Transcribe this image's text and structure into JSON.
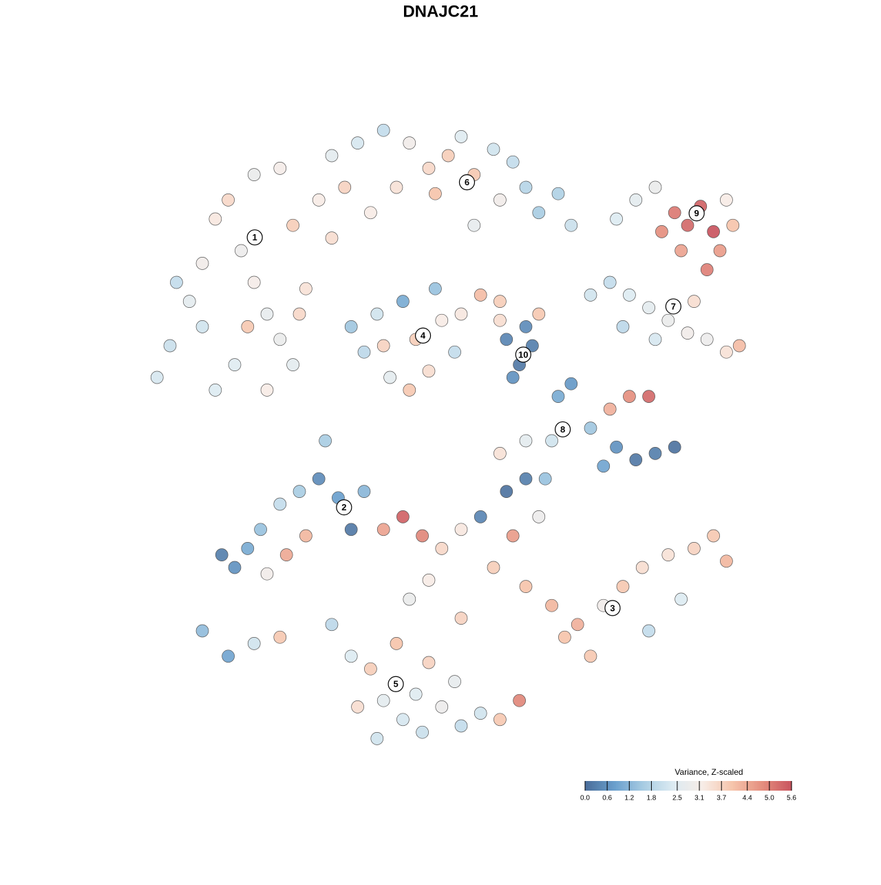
{
  "chart_data": {
    "type": "scatter",
    "title": "DNAJC21",
    "colorbar_label": "Variance, Z-scaled",
    "clim": [
      0,
      5.6
    ],
    "cticks": [
      {
        "value": 0,
        "label": "0.0"
      },
      0.6,
      1.2,
      1.8,
      2.5,
      3.1,
      3.7,
      4.4,
      {
        "value": 5,
        "label": "5.0"
      },
      5.6
    ],
    "colormap": [
      "#4a6d99",
      "#6a9fcd",
      "#a9cde3",
      "#ddebf2",
      "#f7ece6",
      "#f6c4ab",
      "#e58f7f",
      "#c9545e"
    ],
    "xlim": [
      0,
      100
    ],
    "ylim": [
      0,
      100
    ],
    "x": [
      3,
      5,
      8,
      10,
      12,
      14,
      16,
      18,
      20,
      22,
      15,
      12,
      20,
      24,
      26,
      24,
      28,
      30,
      10,
      6,
      18,
      22,
      25,
      17,
      30,
      34,
      38,
      42,
      45,
      48,
      50,
      52,
      55,
      58,
      60,
      62,
      65,
      56,
      46,
      40,
      36,
      32,
      52,
      67,
      74,
      77,
      80,
      83,
      85,
      87,
      89,
      90,
      84,
      92,
      88,
      91,
      81,
      70,
      73,
      76,
      79,
      82,
      85,
      88,
      91,
      93,
      80,
      75,
      86,
      33,
      35,
      37,
      39,
      41,
      43,
      45,
      47,
      49,
      46,
      38,
      42,
      50,
      53,
      56,
      57,
      59,
      61,
      60,
      58,
      62,
      56,
      65,
      67,
      73,
      76,
      79,
      70,
      74,
      77,
      80,
      83,
      72,
      64,
      60,
      56,
      13,
      15,
      17,
      19,
      22,
      25,
      28,
      31,
      33,
      26,
      23,
      20,
      10,
      14,
      18,
      22,
      29,
      35,
      38,
      41,
      44,
      47,
      50,
      53,
      57,
      60,
      63,
      55,
      60,
      64,
      68,
      72,
      75,
      78,
      82,
      86,
      89,
      91,
      84,
      79,
      70,
      66,
      45,
      42,
      50,
      58,
      62,
      30,
      33,
      36,
      38,
      41,
      44,
      47,
      50,
      53,
      56,
      59,
      34,
      40,
      45,
      49,
      43,
      37
    ],
    "y": [
      60,
      65,
      72,
      78,
      85,
      88,
      80,
      75,
      70,
      66,
      62,
      58,
      58,
      62,
      74,
      84,
      88,
      82,
      68,
      75,
      92,
      93,
      70,
      68,
      95,
      97,
      99,
      97,
      93,
      95,
      98,
      92,
      96,
      94,
      90,
      86,
      89,
      88,
      89,
      90,
      86,
      90,
      84,
      84,
      85,
      88,
      90,
      86,
      84,
      87,
      83,
      80,
      80,
      84,
      77,
      88,
      83,
      73,
      75,
      73,
      71,
      69,
      67,
      66,
      64,
      65,
      66,
      68,
      72,
      68,
      64,
      70,
      60,
      72,
      66,
      61,
      69,
      64,
      74,
      65,
      58,
      70,
      73,
      72,
      66,
      62,
      65,
      68,
      60,
      70,
      69,
      57,
      59,
      55,
      57,
      57,
      52,
      49,
      47,
      48,
      49,
      46,
      50,
      50,
      48,
      32,
      30,
      33,
      36,
      40,
      42,
      44,
      41,
      36,
      35,
      32,
      29,
      20,
      16,
      18,
      19,
      50,
      42,
      36,
      38,
      35,
      33,
      36,
      38,
      42,
      44,
      44,
      30,
      27,
      24,
      21,
      24,
      27,
      30,
      32,
      33,
      35,
      31,
      25,
      20,
      16,
      19,
      28,
      25,
      22,
      35,
      38,
      21,
      16,
      14,
      9,
      6,
      4,
      8,
      5,
      7,
      6,
      9,
      8,
      18,
      15,
      12,
      10,
      3
    ],
    "values": [
      2.3,
      2.1,
      2.6,
      3.0,
      3.3,
      3.6,
      2.9,
      3.1,
      2.7,
      2.8,
      2.5,
      2.4,
      3.2,
      2.6,
      3.4,
      3.8,
      3.2,
      3.5,
      2.2,
      2.0,
      2.8,
      3.1,
      3.6,
      3.9,
      2.6,
      2.3,
      2.0,
      3.0,
      3.6,
      3.8,
      2.5,
      3.9,
      2.2,
      2.0,
      1.8,
      1.6,
      1.7,
      3.0,
      4.0,
      3.4,
      3.2,
      3.7,
      2.7,
      2.1,
      2.4,
      2.6,
      2.8,
      5.1,
      5.3,
      5.4,
      5.6,
      4.6,
      4.5,
      4.0,
      5.0,
      3.2,
      4.8,
      2.2,
      2.0,
      2.4,
      2.6,
      2.8,
      3.0,
      2.9,
      3.4,
      4.1,
      2.3,
      1.9,
      3.5,
      1.5,
      1.9,
      2.2,
      2.6,
      1.0,
      3.8,
      3.5,
      3.2,
      2.0,
      1.4,
      3.7,
      3.9,
      3.3,
      4.1,
      3.8,
      0.4,
      0.2,
      0.3,
      0.5,
      0.6,
      3.9,
      3.5,
      1.0,
      0.7,
      4.3,
      4.8,
      5.3,
      1.5,
      0.6,
      0.2,
      0.3,
      0.1,
      0.9,
      2.2,
      2.6,
      3.4,
      0.3,
      0.6,
      1.0,
      1.4,
      2.0,
      1.6,
      0.5,
      0.8,
      0.2,
      4.2,
      4.4,
      3.0,
      1.3,
      0.9,
      2.2,
      3.9,
      1.6,
      1.2,
      4.5,
      5.4,
      4.9,
      3.6,
      3.3,
      0.4,
      0.1,
      0.3,
      1.4,
      3.8,
      4.0,
      4.2,
      4.3,
      3.0,
      3.9,
      3.5,
      3.4,
      3.7,
      3.9,
      4.2,
      2.4,
      2.0,
      3.9,
      4.0,
      3.2,
      2.8,
      3.7,
      4.6,
      2.9,
      1.9,
      2.4,
      3.8,
      2.6,
      2.3,
      2.1,
      2.9,
      2.0,
      2.2,
      3.9,
      4.9,
      3.5,
      4.0,
      3.7,
      2.7,
      2.5,
      2.2
    ],
    "annotations": [
      {
        "text": "1",
        "x": 18.1,
        "y": 82.1
      },
      {
        "text": "2",
        "x": 31.9,
        "y": 39.5
      },
      {
        "text": "3",
        "x": 73.4,
        "y": 23.6
      },
      {
        "text": "4",
        "x": 44.1,
        "y": 66.6
      },
      {
        "text": "5",
        "x": 39.9,
        "y": 11.6
      },
      {
        "text": "6",
        "x": 50.9,
        "y": 90.8
      },
      {
        "text": "7",
        "x": 82.8,
        "y": 71.2
      },
      {
        "text": "8",
        "x": 65.7,
        "y": 51.8
      },
      {
        "text": "9",
        "x": 86.4,
        "y": 85.9
      },
      {
        "text": "10",
        "x": 59.6,
        "y": 63.6
      }
    ]
  }
}
